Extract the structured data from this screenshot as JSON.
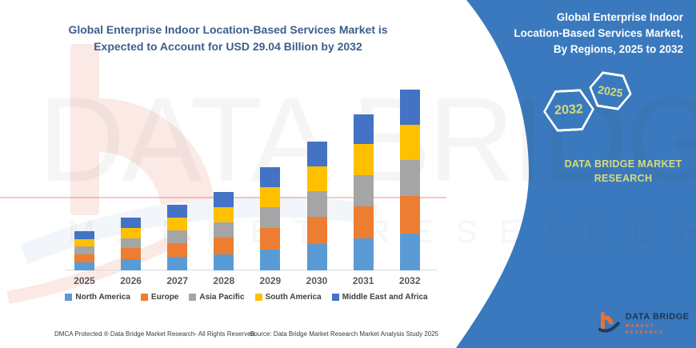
{
  "main_title": {
    "line1": "Global Enterprise Indoor Location-Based Services Market is",
    "line2": "Expected to Account for USD 29.04 Billion by 2032"
  },
  "chart_data": {
    "type": "bar",
    "stacked": true,
    "title": "Global Enterprise Indoor Location-Based Services Market is Expected to Account for USD 29.04 Billion by 2032",
    "unit": "USD Billion",
    "categories": [
      "2025",
      "2026",
      "2027",
      "2028",
      "2029",
      "2030",
      "2031",
      "2032"
    ],
    "series": [
      {
        "name": "North America",
        "color": "#5B9BD5",
        "values": [
          1.3,
          1.75,
          2.15,
          2.6,
          3.4,
          4.25,
          5.1,
          5.9
        ]
      },
      {
        "name": "Europe",
        "color": "#ED7D31",
        "values": [
          1.3,
          1.8,
          2.2,
          2.65,
          3.45,
          4.3,
          5.2,
          6.05
        ]
      },
      {
        "name": "Asia Pacific",
        "color": "#A5A5A5",
        "values": [
          1.2,
          1.65,
          2.1,
          2.5,
          3.3,
          4.15,
          5.05,
          5.8
        ]
      },
      {
        "name": "South America",
        "color": "#FFC000",
        "values": [
          1.25,
          1.65,
          2.05,
          2.45,
          3.25,
          4.05,
          4.95,
          5.7
        ]
      },
      {
        "name": "Middle East and Africa",
        "color": "#4472C4",
        "values": [
          1.25,
          1.65,
          2.0,
          2.4,
          3.2,
          3.95,
          4.8,
          5.59
        ]
      }
    ],
    "totals": [
      6.3,
      8.5,
      10.5,
      12.6,
      16.6,
      20.7,
      25.1,
      29.04
    ],
    "xlabel": "",
    "ylabel": "",
    "y_axis_visible": false,
    "grid": false,
    "legend_position": "bottom"
  },
  "right_panel": {
    "title_line1": "Global Enterprise Indoor",
    "title_line2": "Location-Based Services Market,",
    "title_line3": "By Regions, 2025 to 2032",
    "hexagons": [
      {
        "label": "2032"
      },
      {
        "label": "2025"
      }
    ],
    "brand_line1": "DATA BRIDGE MARKET",
    "brand_line2": "RESEARCH",
    "colors": {
      "panel_blue": "#3A79BD",
      "accent_yellow_green": "#D8DA79"
    }
  },
  "watermark": {
    "text_line1": "DATA BRIDGE",
    "text_line2": "MARKET RESEARCH"
  },
  "footer": {
    "dmca": "DMCA Protected ® Data Bridge Market Research-  All Rights Reserved.",
    "source": "Source: Data Bridge Market Research Market Analysis Study 2025",
    "logo_name": "DATA BRIDGE",
    "logo_sub": "MARKET RESEARCH"
  }
}
